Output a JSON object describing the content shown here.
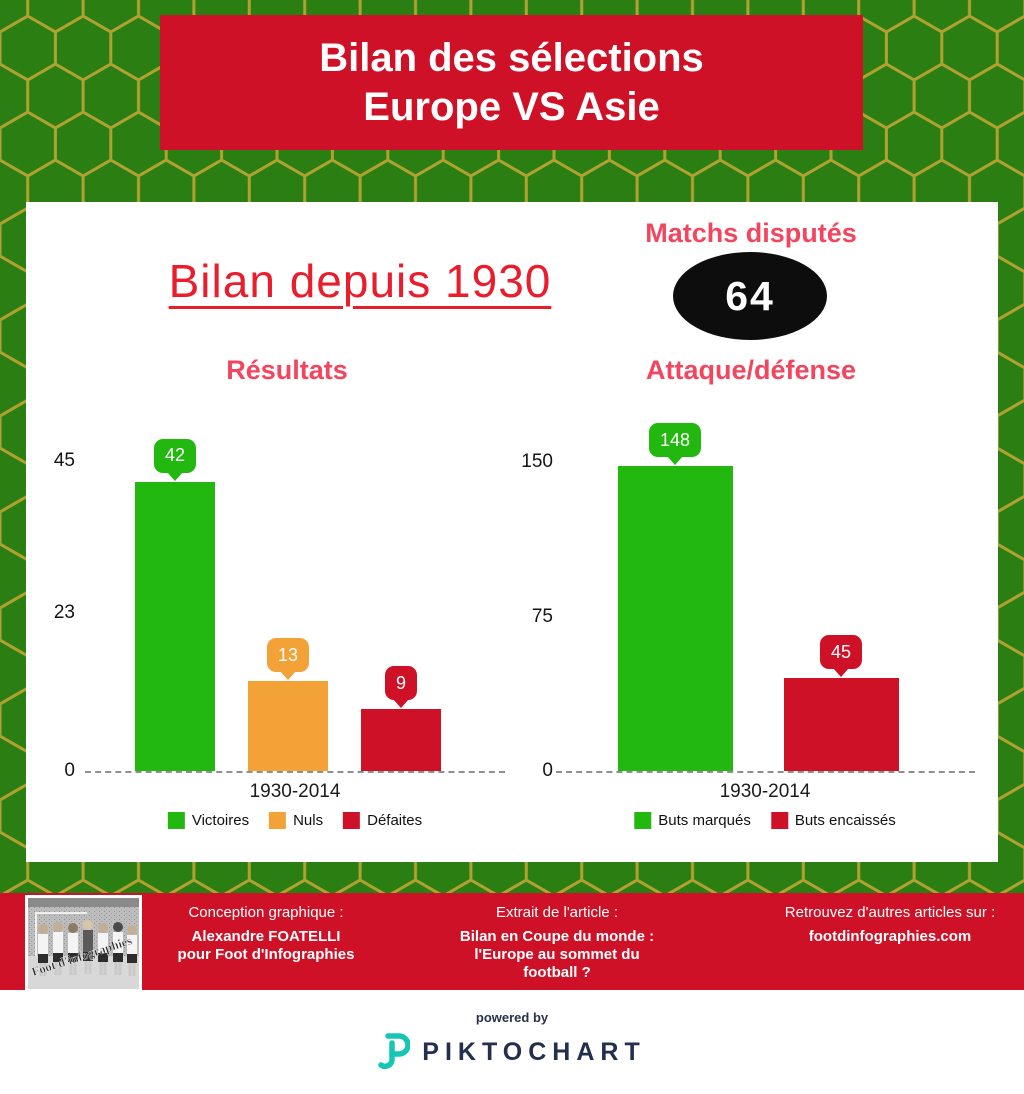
{
  "colors": {
    "background_green": "#2b7e12",
    "hex_line": "#b1a133",
    "banner_red": "#ce1126",
    "title_red": "#e91d2c",
    "heading_pink": "#f4455e",
    "bar_green": "#22b80f",
    "bar_orange": "#f2a237",
    "bar_red": "#ce1126",
    "badge_black": "#0d0d0d",
    "navy": "#242f4e",
    "teal": "#16c6b5"
  },
  "header": {
    "title_line1": "Bilan des sélections",
    "title_line2": "Europe VS Asie"
  },
  "card": {
    "title": "Bilan depuis 1930",
    "matches_label": "Matchs disputés",
    "matches_value": "64"
  },
  "chart_data": [
    {
      "type": "bar",
      "title": "Résultats",
      "categories": [
        "1930-2014"
      ],
      "series": [
        {
          "name": "Victoires",
          "values": [
            42
          ],
          "color": "#22b80f"
        },
        {
          "name": "Nuls",
          "values": [
            13
          ],
          "color": "#f2a237"
        },
        {
          "name": "Défaites",
          "values": [
            9
          ],
          "color": "#ce1126"
        }
      ],
      "ylim": [
        0,
        45
      ],
      "yticks": [
        0,
        23,
        45
      ],
      "grid": false,
      "legend_position": "bottom"
    },
    {
      "type": "bar",
      "title": "Attaque/défense",
      "categories": [
        "1930-2014"
      ],
      "series": [
        {
          "name": "Buts marqués",
          "values": [
            148
          ],
          "color": "#22b80f"
        },
        {
          "name": "Buts encaissés",
          "values": [
            45
          ],
          "color": "#ce1126"
        }
      ],
      "ylim": [
        0,
        150
      ],
      "yticks": [
        0,
        75,
        150
      ],
      "grid": false,
      "legend_position": "bottom"
    }
  ],
  "footer": {
    "photo_watermark": "Foot d'infographies",
    "col1": {
      "line1": "Conception graphique :",
      "bold_lines": [
        "Alexandre FOATELLI",
        "pour Foot d'Infographies"
      ]
    },
    "col2": {
      "line1": "Extrait de l'article :",
      "bold_lines": [
        "Bilan en Coupe du monde :",
        "l'Europe au sommet du",
        "football ?"
      ]
    },
    "col3": {
      "line1": "Retrouvez d'autres articles sur :",
      "bold_lines": [
        "footdinfographies.com"
      ]
    }
  },
  "powered": {
    "prefix": "powered by",
    "brand": "PIKTOCHART"
  }
}
